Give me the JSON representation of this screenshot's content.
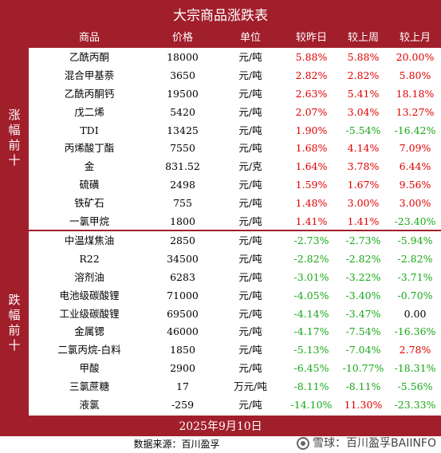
{
  "title": "大宗商品涨跌表",
  "headers": [
    "商品",
    "价格",
    "单位",
    "较昨日",
    "较上周",
    "较上月"
  ],
  "sections": [
    {
      "label": "涨幅前十",
      "rows": [
        {
          "name": "乙酰丙酮",
          "price": "18000",
          "unit": "元/吨",
          "d": "5.88%",
          "w": "5.88%",
          "m": "20.00%"
        },
        {
          "name": "混合甲基萘",
          "price": "3650",
          "unit": "元/吨",
          "d": "2.82%",
          "w": "2.82%",
          "m": "5.80%"
        },
        {
          "name": "乙酰丙酮钙",
          "price": "19500",
          "unit": "元/吨",
          "d": "2.63%",
          "w": "5.41%",
          "m": "18.18%"
        },
        {
          "name": "戊二烯",
          "price": "5420",
          "unit": "元/吨",
          "d": "2.07%",
          "w": "3.04%",
          "m": "13.27%"
        },
        {
          "name": "TDI",
          "price": "13425",
          "unit": "元/吨",
          "d": "1.90%",
          "w": "-5.54%",
          "m": "-16.42%"
        },
        {
          "name": "丙烯酸丁酯",
          "price": "7550",
          "unit": "元/吨",
          "d": "1.68%",
          "w": "4.14%",
          "m": "7.09%"
        },
        {
          "name": "金",
          "price": "831.52",
          "unit": "元/克",
          "d": "1.64%",
          "w": "3.78%",
          "m": "6.44%"
        },
        {
          "name": "硫磺",
          "price": "2498",
          "unit": "元/吨",
          "d": "1.59%",
          "w": "1.67%",
          "m": "9.56%"
        },
        {
          "name": "铁矿石",
          "price": "755",
          "unit": "元/吨",
          "d": "1.48%",
          "w": "3.00%",
          "m": "3.00%"
        },
        {
          "name": "一氯甲烷",
          "price": "1800",
          "unit": "元/吨",
          "d": "1.41%",
          "w": "1.41%",
          "m": "-23.40%"
        }
      ]
    },
    {
      "label": "跌幅前十",
      "rows": [
        {
          "name": "中温煤焦油",
          "price": "2850",
          "unit": "元/吨",
          "d": "-2.73%",
          "w": "-2.73%",
          "m": "-5.94%"
        },
        {
          "name": "R22",
          "price": "34500",
          "unit": "元/吨",
          "d": "-2.82%",
          "w": "-2.82%",
          "m": "-2.82%"
        },
        {
          "name": "溶剂油",
          "price": "6283",
          "unit": "元/吨",
          "d": "-3.01%",
          "w": "-3.22%",
          "m": "-3.71%"
        },
        {
          "name": "电池级碳酸锂",
          "price": "71000",
          "unit": "元/吨",
          "d": "-4.05%",
          "w": "-3.40%",
          "m": "-0.70%"
        },
        {
          "name": "工业级碳酸锂",
          "price": "69500",
          "unit": "元/吨",
          "d": "-4.14%",
          "w": "-3.47%",
          "m": "0.00"
        },
        {
          "name": "金属锶",
          "price": "46000",
          "unit": "元/吨",
          "d": "-4.17%",
          "w": "-7.54%",
          "m": "-16.36%"
        },
        {
          "name": "二氯丙烷-白料",
          "price": "1850",
          "unit": "元/吨",
          "d": "-5.13%",
          "w": "-7.04%",
          "m": "2.78%"
        },
        {
          "name": "甲酸",
          "price": "2900",
          "unit": "元/吨",
          "d": "-6.45%",
          "w": "-10.77%",
          "m": "-18.31%"
        },
        {
          "name": "三氯蔗糖",
          "price": "17",
          "unit": "万元/吨",
          "d": "-8.11%",
          "w": "-8.11%",
          "m": "-5.56%"
        },
        {
          "name": "液氯",
          "price": "-259",
          "unit": "元/吨",
          "d": "-14.10%",
          "w": "11.30%",
          "m": "-23.33%"
        }
      ]
    }
  ],
  "date": "2025年9月10日",
  "source": "数据来源：百川盈孚",
  "watermark": "雪球：百川盈孚BAIINFO",
  "colors": {
    "brand": "#a11f2b",
    "up": "#e00000",
    "down": "#17a817"
  }
}
